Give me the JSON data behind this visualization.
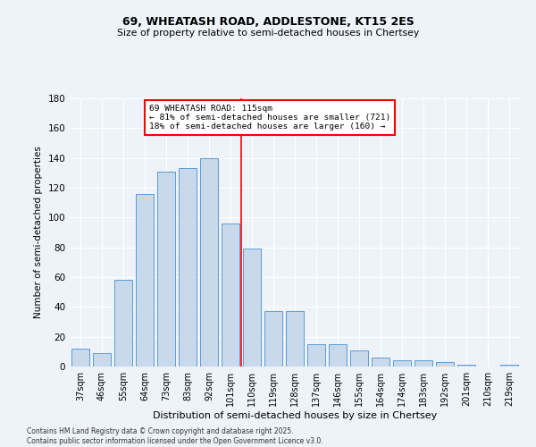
{
  "title1": "69, WHEATASH ROAD, ADDLESTONE, KT15 2ES",
  "title2": "Size of property relative to semi-detached houses in Chertsey",
  "xlabel": "Distribution of semi-detached houses by size in Chertsey",
  "ylabel": "Number of semi-detached properties",
  "categories": [
    "37sqm",
    "46sqm",
    "55sqm",
    "64sqm",
    "73sqm",
    "83sqm",
    "92sqm",
    "101sqm",
    "110sqm",
    "119sqm",
    "128sqm",
    "137sqm",
    "146sqm",
    "155sqm",
    "164sqm",
    "174sqm",
    "183sqm",
    "192sqm",
    "201sqm",
    "210sqm",
    "219sqm"
  ],
  "values": [
    12,
    9,
    58,
    116,
    131,
    133,
    140,
    96,
    79,
    37,
    37,
    15,
    15,
    11,
    6,
    4,
    4,
    3,
    1,
    0,
    1
  ],
  "bar_color": "#c9d9ec",
  "bar_edge_color": "#5b9bd5",
  "property_label": "69 WHEATASH ROAD: 115sqm",
  "smaller_pct": 81,
  "smaller_count": 721,
  "larger_pct": 18,
  "larger_count": 160,
  "vline_pos": 7.5,
  "ylim": [
    0,
    180
  ],
  "yticks": [
    0,
    20,
    40,
    60,
    80,
    100,
    120,
    140,
    160,
    180
  ],
  "background_color": "#eef2f9",
  "grid_color": "#ffffff",
  "footnote1": "Contains HM Land Registry data © Crown copyright and database right 2025.",
  "footnote2": "Contains public sector information licensed under the Open Government Licence v3.0."
}
